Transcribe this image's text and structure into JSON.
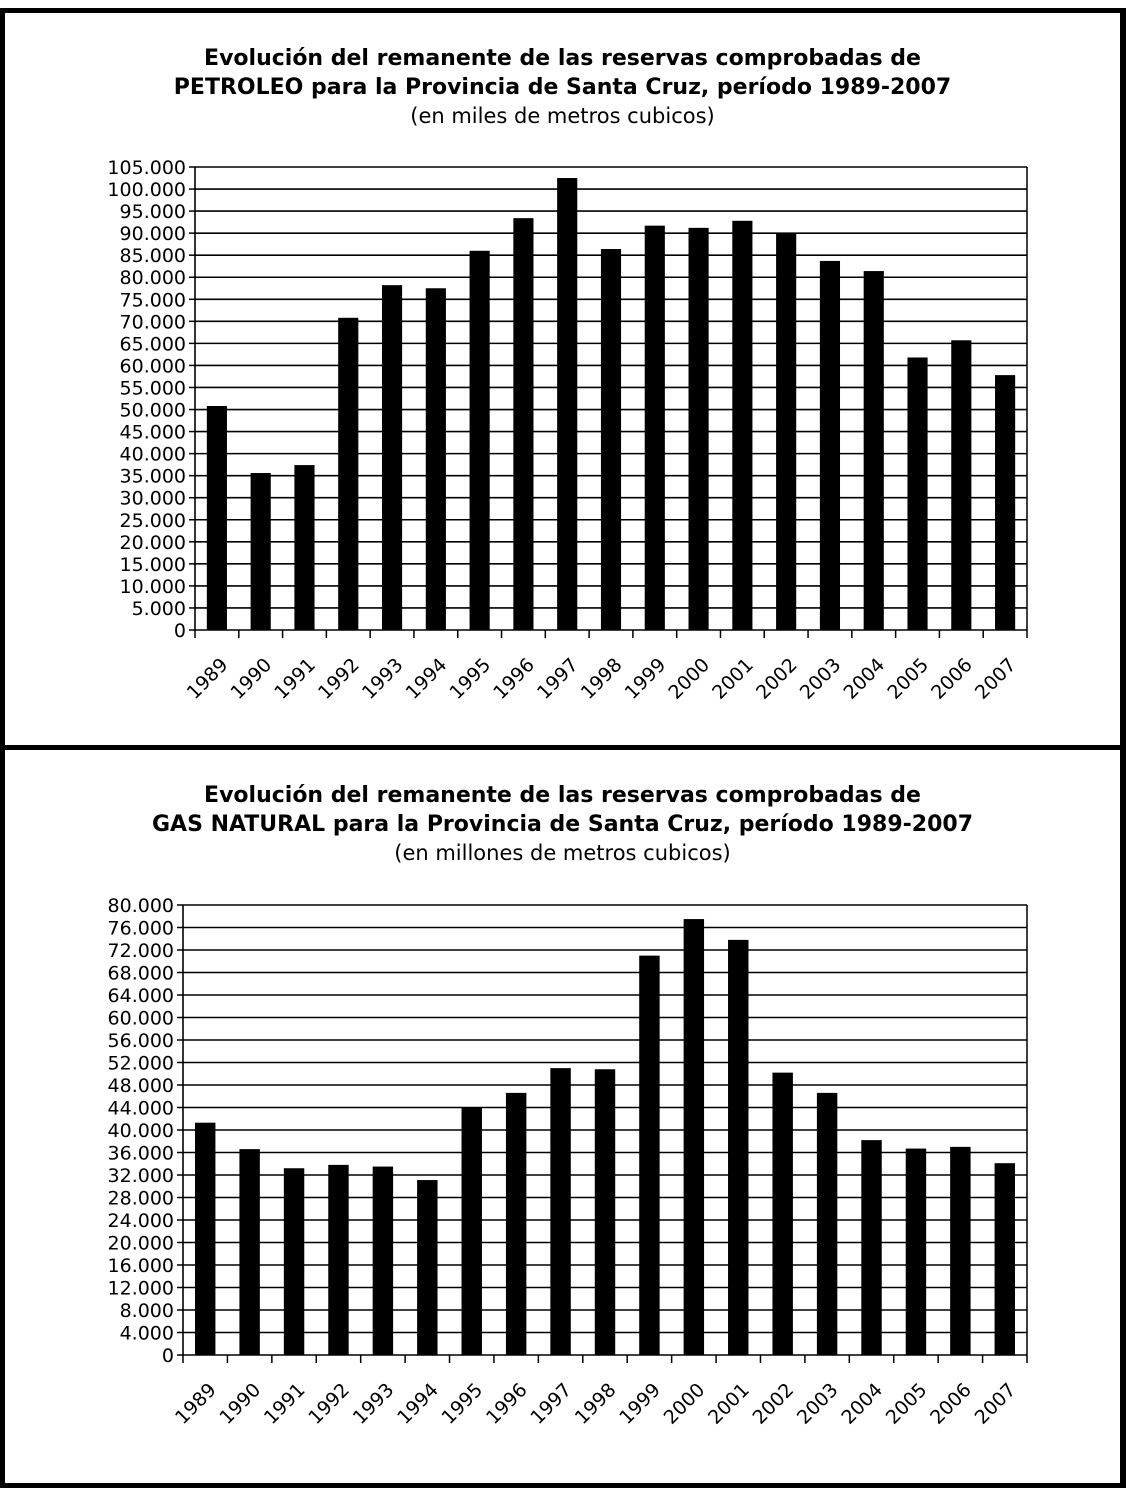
{
  "chart_data": [
    {
      "type": "bar",
      "title_line1": "Evolución del remanente de las reservas comprobadas de",
      "title_line2": "PETROLEO para la Provincia de Santa Cruz, período 1989-2007",
      "subtitle": "(en miles de metros cubicos)",
      "categories": [
        "1989",
        "1990",
        "1991",
        "1992",
        "1993",
        "1994",
        "1995",
        "1996",
        "1997",
        "1998",
        "1999",
        "2000",
        "2001",
        "2002",
        "2003",
        "2004",
        "2005",
        "2006",
        "2007"
      ],
      "values": [
        50800,
        35600,
        37400,
        70800,
        78200,
        77500,
        86000,
        93400,
        102500,
        86400,
        91700,
        91200,
        92800,
        90000,
        83700,
        81400,
        61800,
        65700,
        57800
      ],
      "ylim": [
        0,
        105000
      ],
      "ytick_step": 5000,
      "ytick_labels": [
        "0",
        "5.000",
        "10.000",
        "15.000",
        "20.000",
        "25.000",
        "30.000",
        "35.000",
        "40.000",
        "45.000",
        "50.000",
        "55.000",
        "60.000",
        "65.000",
        "70.000",
        "75.000",
        "80.000",
        "85.000",
        "90.000",
        "95.000",
        "100.000",
        "105.000"
      ],
      "grid": true,
      "bar_color": "#000000"
    },
    {
      "type": "bar",
      "title_line1": "Evolución del remanente de las reservas comprobadas de",
      "title_line2": "GAS NATURAL para la Provincia de Santa Cruz, período 1989-2007",
      "subtitle": "(en millones de metros cubicos)",
      "categories": [
        "1989",
        "1990",
        "1991",
        "1992",
        "1993",
        "1994",
        "1995",
        "1996",
        "1997",
        "1998",
        "1999",
        "2000",
        "2001",
        "2002",
        "2003",
        "2004",
        "2005",
        "2006",
        "2007"
      ],
      "values": [
        41300,
        36600,
        33200,
        33800,
        33500,
        31100,
        44000,
        46600,
        51000,
        50800,
        71000,
        77500,
        73800,
        50200,
        46600,
        38200,
        36700,
        37000,
        34100
      ],
      "ylim": [
        0,
        80000
      ],
      "ytick_step": 4000,
      "ytick_labels": [
        "0",
        "4.000",
        "8.000",
        "12.000",
        "16.000",
        "20.000",
        "24.000",
        "28.000",
        "32.000",
        "36.000",
        "40.000",
        "44.000",
        "48.000",
        "52.000",
        "56.000",
        "60.000",
        "64.000",
        "68.000",
        "72.000",
        "76.000",
        "80.000"
      ],
      "grid": true,
      "bar_color": "#000000"
    }
  ]
}
